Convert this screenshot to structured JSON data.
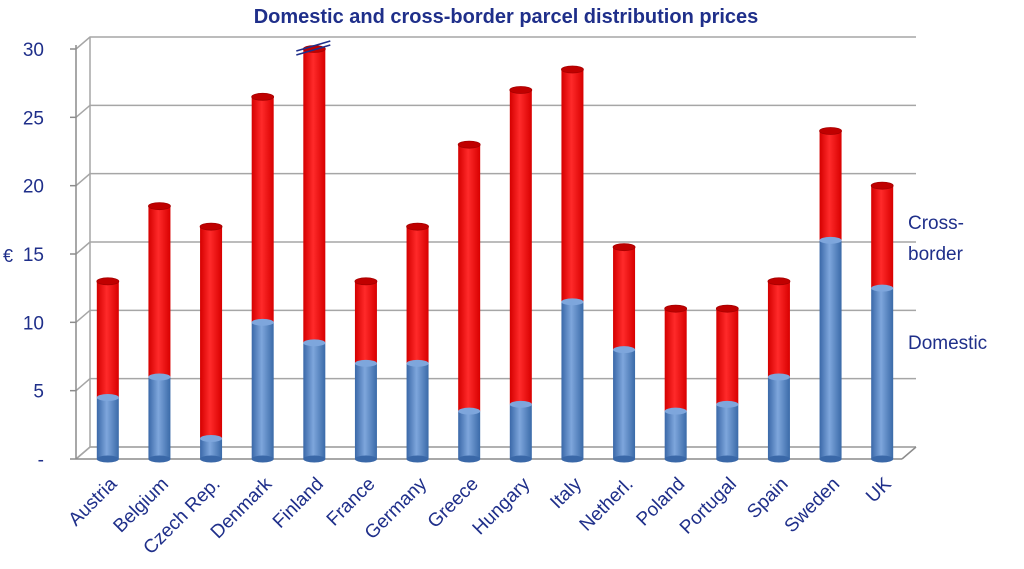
{
  "chart_data": {
    "type": "bar",
    "stacked": true,
    "title": "Domestic and cross-border parcel distribution prices",
    "ylabel": "€",
    "ylim": [
      0,
      30
    ],
    "yticks": [
      0,
      5,
      10,
      15,
      20,
      25,
      30
    ],
    "ytick_labels": [
      "-",
      "5",
      "10",
      "15",
      "20",
      "25",
      "30"
    ],
    "grid": true,
    "categories": [
      "Austria",
      "Belgium",
      "Czech Rep.",
      "Denmark",
      "Finland",
      "France",
      "Germany",
      "Greece",
      "Hungary",
      "Italy",
      "Netherl.",
      "Poland",
      "Portugal",
      "Spain",
      "Sweden",
      "UK"
    ],
    "series": [
      {
        "name": "Domestic",
        "color": "#4f81bd",
        "values": [
          4.5,
          6,
          1.5,
          10,
          8.5,
          7,
          7,
          3.5,
          4,
          11.5,
          8,
          3.5,
          4,
          6,
          16,
          12.5
        ]
      },
      {
        "name": "Cross-border",
        "color": "#ff0000",
        "values": [
          8.5,
          12.5,
          15.5,
          16.5,
          21.5,
          6,
          10,
          19.5,
          23,
          17,
          7.5,
          7.5,
          7,
          7,
          8,
          7.5
        ]
      }
    ],
    "legend_position": "right",
    "legend_labels": [
      {
        "series": "Cross-border",
        "lines": [
          "Cross-",
          "border"
        ]
      },
      {
        "series": "Domestic",
        "lines": [
          "Domestic"
        ]
      }
    ],
    "axis_break_category": "Finland"
  }
}
